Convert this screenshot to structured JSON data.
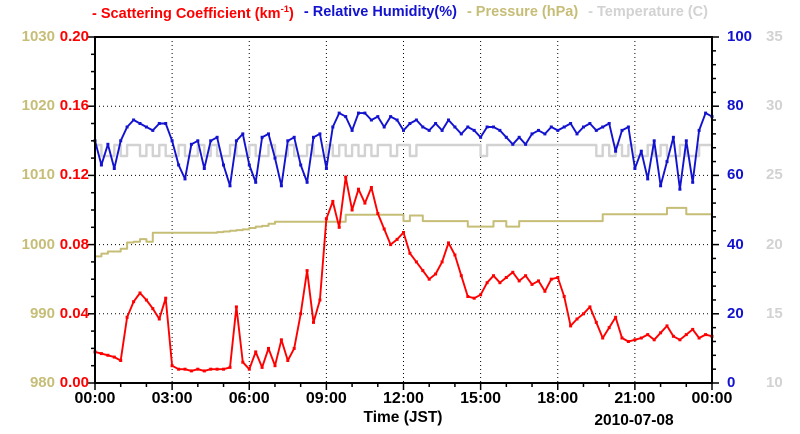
{
  "legend": {
    "scattering": {
      "prefix": "- Scattering Coefficient (km",
      "superscript": "-1",
      "suffix": ")"
    },
    "humidity": {
      "label": "- Relative Humidity(%)"
    },
    "pressure": {
      "label": "- Pressure (hPa)"
    },
    "temperature": {
      "label": "- Temperature (C)"
    }
  },
  "colors": {
    "scattering": "#ff0000",
    "humidity": "#1212cf",
    "pressure": "#c6bd77",
    "temperature": "#d2d2d2",
    "axis": "#000000"
  },
  "axes": {
    "pressure_ticks": [
      "1030",
      "1020",
      "1010",
      "1000",
      "990",
      "980"
    ],
    "scattering_ticks": [
      "0.20",
      "0.16",
      "0.12",
      "0.08",
      "0.04",
      "0.00"
    ],
    "humidity_ticks": [
      "100",
      "80",
      "60",
      "40",
      "20",
      "0"
    ],
    "temperature_ticks": [
      "35",
      "30",
      "25",
      "20",
      "15",
      "10"
    ],
    "time_ticks": [
      "00:00",
      "03:00",
      "06:00",
      "09:00",
      "12:00",
      "15:00",
      "18:00",
      "21:00",
      "00:00"
    ],
    "xlabel": "Time (JST)",
    "date": "2010-07-08"
  },
  "chart_data": {
    "type": "line",
    "title": "",
    "xlabel": "Time (JST)",
    "date": "2010-07-08",
    "x_hours_start": 0,
    "x_hours_step": 0.25,
    "x_range_hours": [
      0,
      24
    ],
    "x_tick_labels": [
      "00:00",
      "03:00",
      "06:00",
      "09:00",
      "12:00",
      "15:00",
      "18:00",
      "21:00",
      "00:00"
    ],
    "grid": "dotted at major ticks, both axes",
    "legend_position": "top",
    "series": [
      {
        "name": "Scattering Coefficient (km^-1)",
        "color": "#ff0000",
        "ylim": [
          0.0,
          0.2
        ],
        "axis_side": "inner-left",
        "markers": true,
        "style": "line",
        "values": [
          0.018,
          0.017,
          0.016,
          0.015,
          0.013,
          0.038,
          0.047,
          0.052,
          0.048,
          0.043,
          0.037,
          0.049,
          0.01,
          0.008,
          0.008,
          0.007,
          0.008,
          0.007,
          0.008,
          0.008,
          0.008,
          0.009,
          0.044,
          0.012,
          0.008,
          0.018,
          0.009,
          0.02,
          0.01,
          0.025,
          0.013,
          0.02,
          0.04,
          0.065,
          0.035,
          0.048,
          0.095,
          0.105,
          0.09,
          0.119,
          0.1,
          0.112,
          0.104,
          0.113,
          0.098,
          0.089,
          0.08,
          0.083,
          0.087,
          0.075,
          0.07,
          0.065,
          0.06,
          0.063,
          0.07,
          0.081,
          0.074,
          0.062,
          0.05,
          0.049,
          0.051,
          0.058,
          0.062,
          0.058,
          0.061,
          0.064,
          0.059,
          0.062,
          0.057,
          0.059,
          0.053,
          0.06,
          0.061,
          0.05,
          0.033,
          0.037,
          0.04,
          0.044,
          0.035,
          0.026,
          0.032,
          0.038,
          0.026,
          0.024,
          0.025,
          0.026,
          0.028,
          0.025,
          0.029,
          0.033,
          0.027,
          0.025,
          0.028,
          0.031,
          0.026,
          0.028,
          0.027
        ]
      },
      {
        "name": "Relative Humidity (%)",
        "color": "#1212cf",
        "ylim": [
          0,
          100
        ],
        "axis_side": "inner-right",
        "markers": true,
        "style": "line",
        "values": [
          70,
          63,
          69,
          62,
          70,
          74,
          76,
          75,
          74,
          73,
          75,
          75,
          70,
          63,
          59,
          69,
          70,
          62,
          70,
          71,
          63,
          57,
          70,
          72,
          63,
          58,
          71,
          72,
          65,
          57,
          70,
          71,
          63,
          58,
          71,
          72,
          62,
          74,
          78,
          77,
          73,
          78,
          78,
          76,
          77,
          74,
          77,
          76,
          73,
          75,
          76,
          74,
          73,
          75,
          73,
          76,
          74,
          72,
          74,
          73,
          71,
          74,
          74,
          73,
          71,
          69,
          71,
          69,
          72,
          73,
          72,
          74,
          73,
          74,
          75,
          72,
          74,
          75,
          73,
          74,
          75,
          67,
          73,
          74,
          62,
          67,
          59,
          70,
          57,
          64,
          71,
          56,
          70,
          58,
          73,
          78,
          77
        ]
      },
      {
        "name": "Pressure (hPa)",
        "color": "#c6bd77",
        "ylim": [
          980,
          1030
        ],
        "axis_side": "outer-left",
        "markers": false,
        "style": "step",
        "values": [
          998.3,
          998.7,
          999.0,
          999.0,
          999.4,
          1000.3,
          1000.4,
          1000.8,
          1000.4,
          1001.7,
          1001.7,
          1001.7,
          1001.7,
          1001.7,
          1001.7,
          1001.7,
          1001.7,
          1001.7,
          1001.7,
          1001.8,
          1001.9,
          1002.0,
          1002.1,
          1002.2,
          1002.4,
          1002.6,
          1002.7,
          1003.0,
          1003.3,
          1003.3,
          1003.3,
          1003.3,
          1003.3,
          1003.3,
          1003.3,
          1003.3,
          1003.3,
          1003.3,
          1003.3,
          1004.3,
          1004.3,
          1004.3,
          1004.3,
          1004.3,
          1004.3,
          1004.3,
          1004.3,
          1004.3,
          1003.4,
          1004.2,
          1004.2,
          1003.4,
          1003.4,
          1003.4,
          1003.4,
          1003.4,
          1003.4,
          1003.4,
          1002.6,
          1002.6,
          1002.6,
          1002.6,
          1003.4,
          1003.4,
          1002.6,
          1002.6,
          1003.4,
          1003.4,
          1003.4,
          1003.4,
          1003.4,
          1003.4,
          1003.4,
          1003.4,
          1003.4,
          1003.4,
          1003.4,
          1003.4,
          1003.4,
          1004.4,
          1004.4,
          1004.4,
          1004.4,
          1004.4,
          1004.4,
          1004.4,
          1004.4,
          1004.4,
          1004.4,
          1005.3,
          1005.3,
          1005.3,
          1004.4,
          1004.4,
          1004.4,
          1004.4,
          1004.4
        ]
      },
      {
        "name": "Temperature (C)",
        "color": "#d2d2d2",
        "ylim": [
          10,
          35
        ],
        "axis_side": "outer-right",
        "markers": false,
        "style": "step",
        "values": [
          27.2,
          26.4,
          26.4,
          27.2,
          26.4,
          27.2,
          27.2,
          26.4,
          27.2,
          26.4,
          27.2,
          26.4,
          26.4,
          27.2,
          26.4,
          26.4,
          27.2,
          26.4,
          27.2,
          26.4,
          26.4,
          27.2,
          26.4,
          26.4,
          27.2,
          26.4,
          26.4,
          27.2,
          26.4,
          26.4,
          27.2,
          26.4,
          26.4,
          27.2,
          26.4,
          26.4,
          27.2,
          26.4,
          27.2,
          26.4,
          27.2,
          26.4,
          27.2,
          26.4,
          27.2,
          27.2,
          26.4,
          27.2,
          27.2,
          26.4,
          27.2,
          27.2,
          27.2,
          27.2,
          27.2,
          27.2,
          27.2,
          27.2,
          27.2,
          27.2,
          26.4,
          27.2,
          27.2,
          27.2,
          27.2,
          27.2,
          27.2,
          27.2,
          27.2,
          27.2,
          27.2,
          27.2,
          27.2,
          27.2,
          27.2,
          27.2,
          27.2,
          27.2,
          26.4,
          27.2,
          26.4,
          27.2,
          26.4,
          27.2,
          26.4,
          26.4,
          27.2,
          26.4,
          27.2,
          26.4,
          26.4,
          27.2,
          26.4,
          26.4,
          27.2,
          27.2,
          27.2
        ]
      }
    ]
  }
}
